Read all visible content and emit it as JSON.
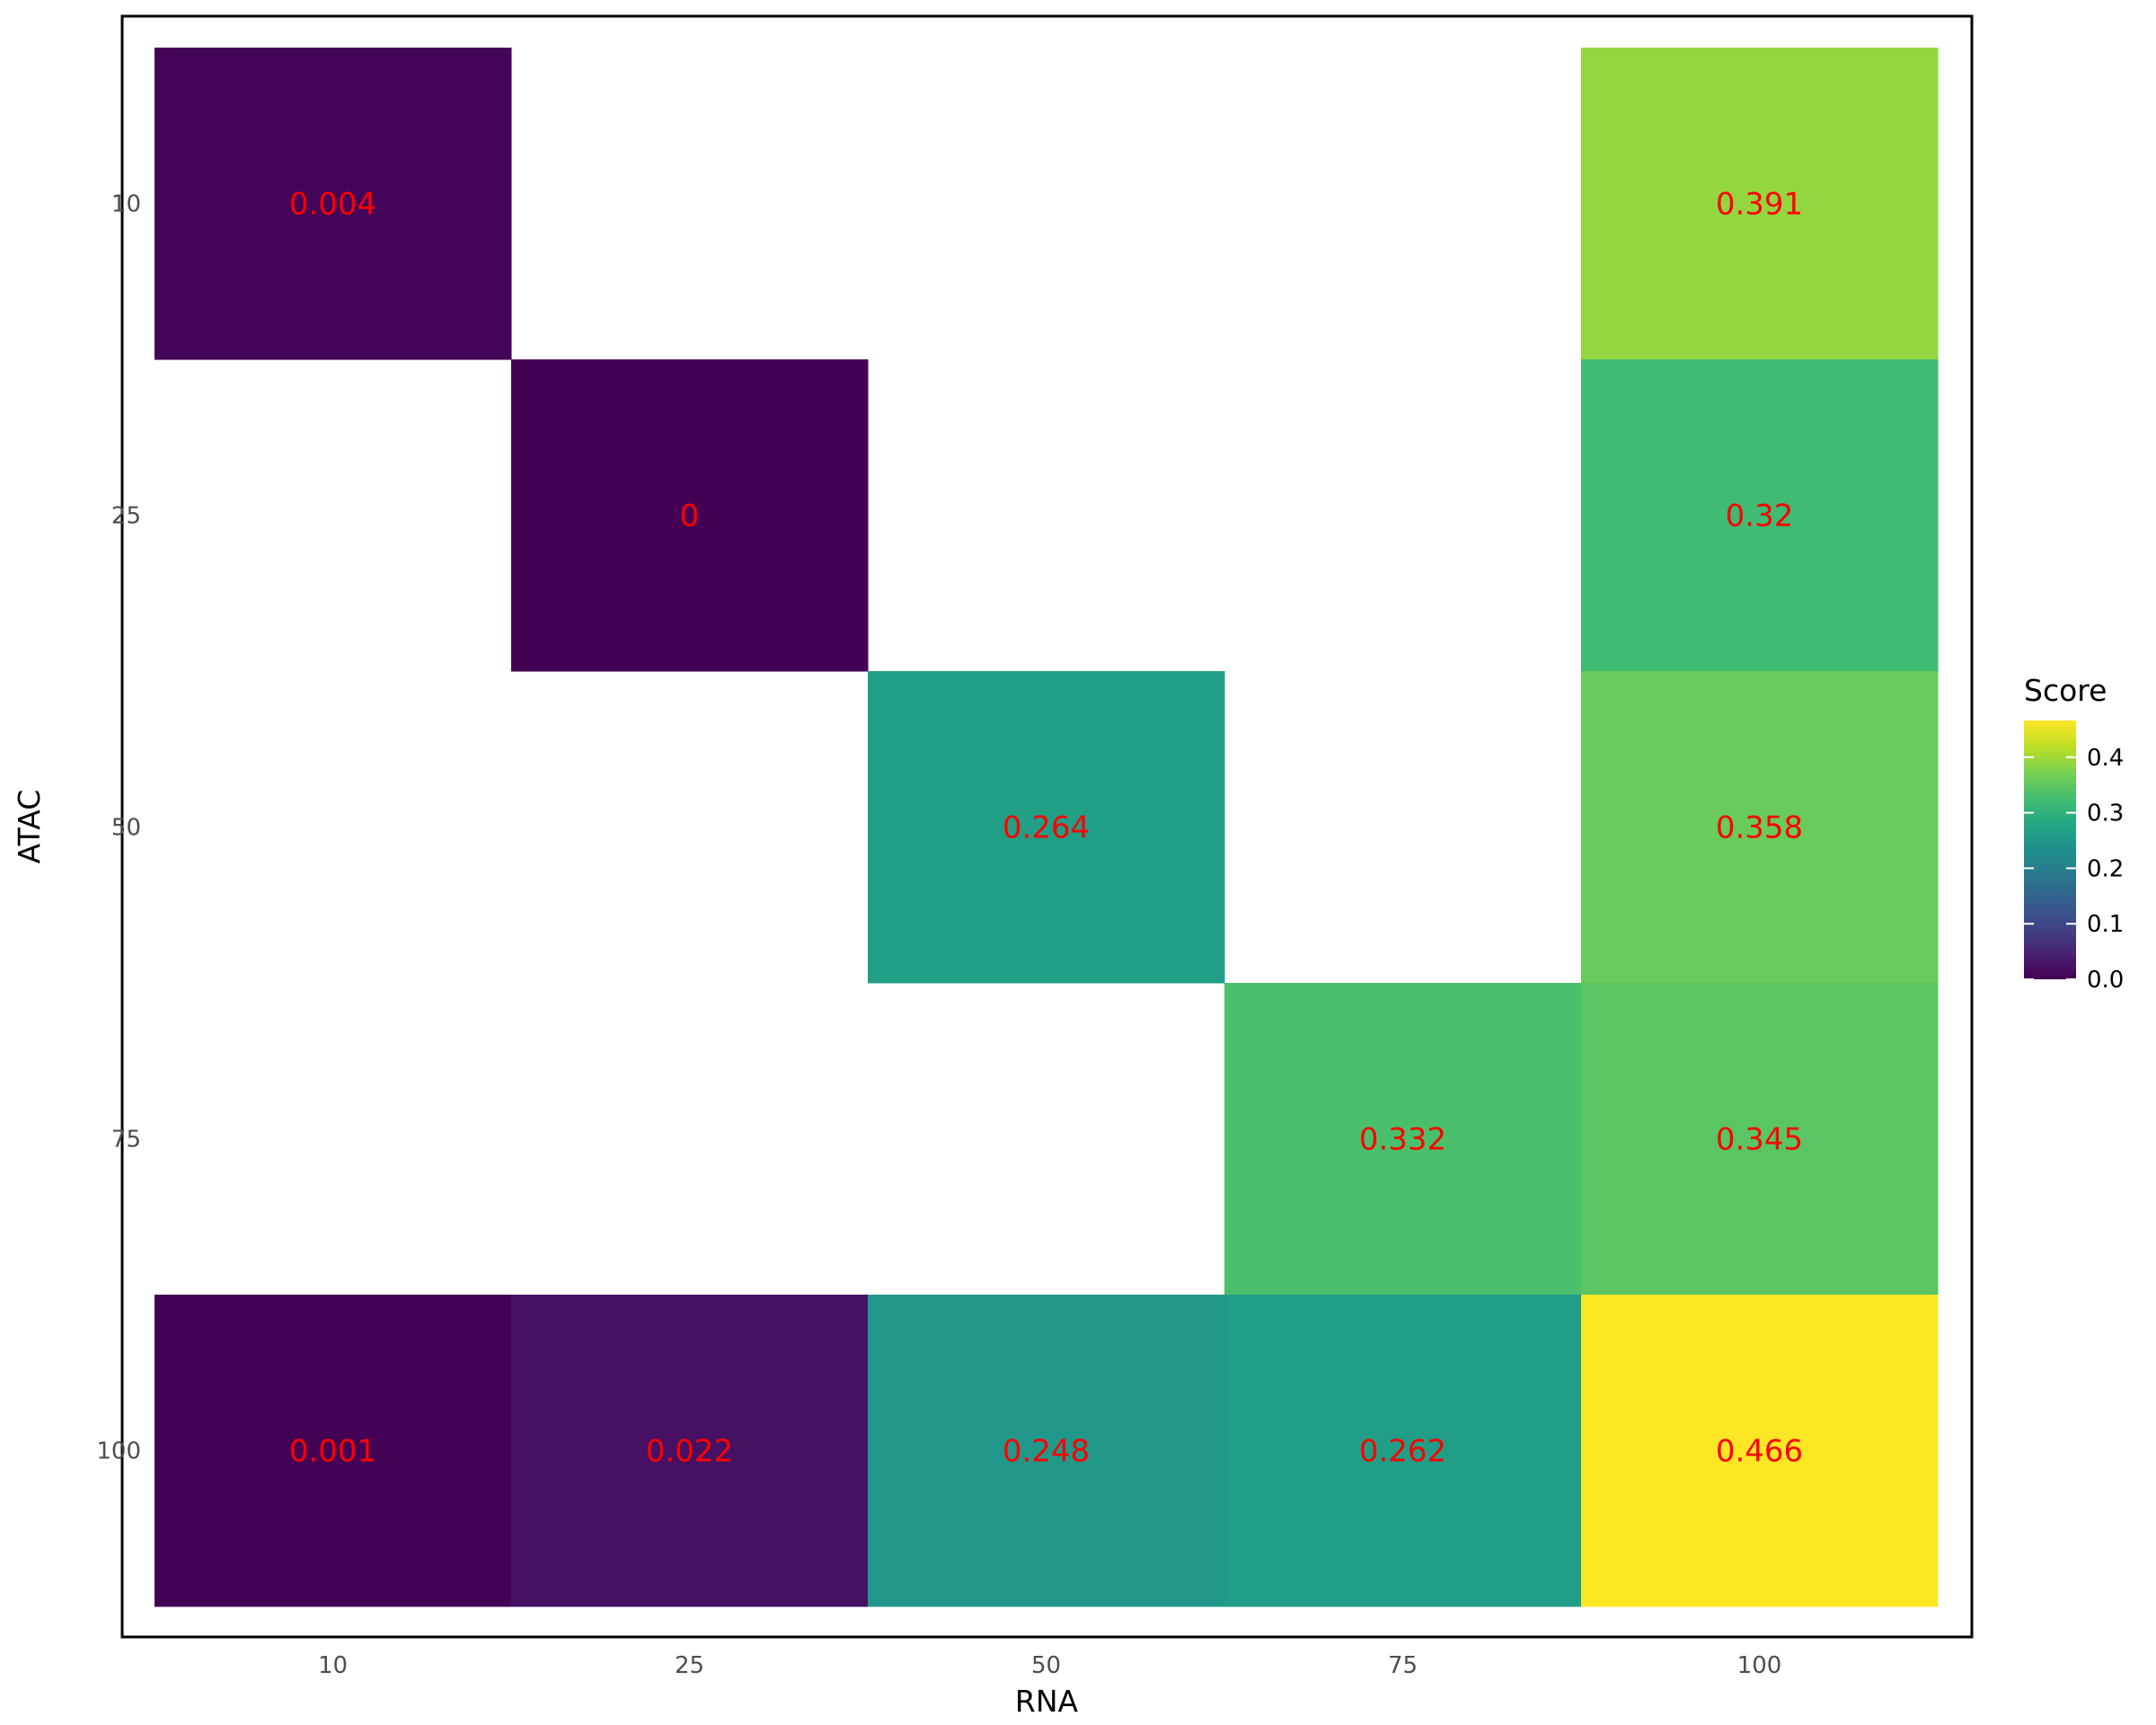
{
  "chart_data": {
    "type": "heatmap",
    "title": "",
    "xlabel": "RNA",
    "ylabel": "ATAC",
    "x_categories": [
      "10",
      "25",
      "50",
      "75",
      "100"
    ],
    "y_categories": [
      "10",
      "25",
      "50",
      "75",
      "100"
    ],
    "cells": [
      {
        "x": "10",
        "y": "10",
        "value": 0.004,
        "label": "0.004"
      },
      {
        "x": "100",
        "y": "10",
        "value": 0.391,
        "label": "0.391"
      },
      {
        "x": "25",
        "y": "25",
        "value": 0.0,
        "label": "0"
      },
      {
        "x": "100",
        "y": "25",
        "value": 0.32,
        "label": "0.32"
      },
      {
        "x": "50",
        "y": "50",
        "value": 0.264,
        "label": "0.264"
      },
      {
        "x": "100",
        "y": "50",
        "value": 0.358,
        "label": "0.358"
      },
      {
        "x": "75",
        "y": "75",
        "value": 0.332,
        "label": "0.332"
      },
      {
        "x": "100",
        "y": "75",
        "value": 0.345,
        "label": "0.345"
      },
      {
        "x": "10",
        "y": "100",
        "value": 0.001,
        "label": "0.001"
      },
      {
        "x": "25",
        "y": "100",
        "value": 0.022,
        "label": "0.022"
      },
      {
        "x": "50",
        "y": "100",
        "value": 0.248,
        "label": "0.248"
      },
      {
        "x": "75",
        "y": "100",
        "value": 0.262,
        "label": "0.262"
      },
      {
        "x": "100",
        "y": "100",
        "value": 0.466,
        "label": "0.466"
      }
    ],
    "legend": {
      "title": "Score",
      "placement": "right",
      "min": 0.0,
      "max": 0.466,
      "ticks": [
        0.0,
        0.1,
        0.2,
        0.3,
        0.4
      ],
      "tick_labels": [
        "0.0",
        "0.1",
        "0.2",
        "0.3",
        "0.4"
      ]
    },
    "colorscale": "viridis",
    "label_color": "#ff0000",
    "grid": false
  }
}
